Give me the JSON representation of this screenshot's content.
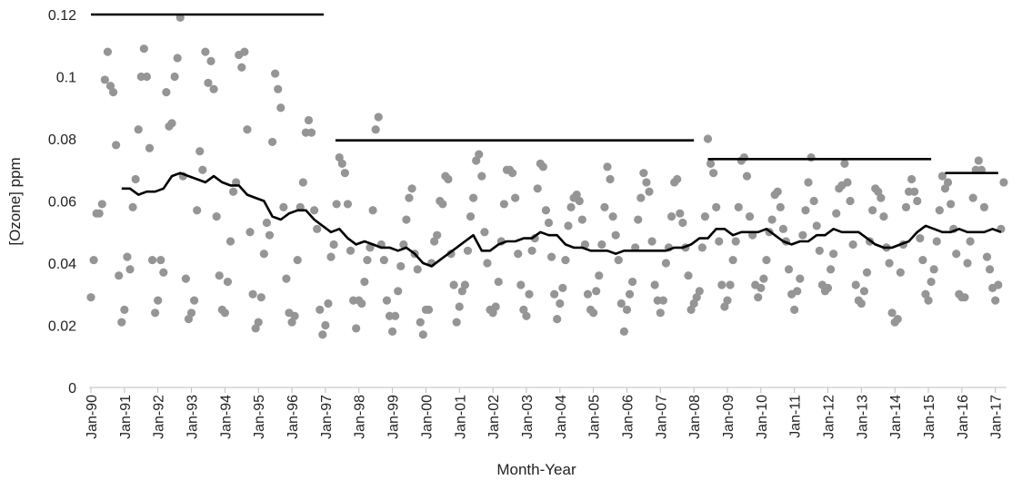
{
  "chart_data": {
    "type": "scatter",
    "xlabel": "Month-Year",
    "ylabel": "[Ozone] ppm",
    "xlim": [
      0,
      328
    ],
    "ylim": [
      0,
      0.12
    ],
    "yticks": [
      0,
      0.02,
      0.04,
      0.06,
      0.08,
      0.1,
      0.12
    ],
    "xticks": [
      {
        "value": 0,
        "label": "Jan-90"
      },
      {
        "value": 12,
        "label": "Jan-91"
      },
      {
        "value": 24,
        "label": "Jan-92"
      },
      {
        "value": 36,
        "label": "Jan-93"
      },
      {
        "value": 48,
        "label": "Jan-94"
      },
      {
        "value": 60,
        "label": "Jan-95"
      },
      {
        "value": 72,
        "label": "Jan-96"
      },
      {
        "value": 84,
        "label": "Jan-97"
      },
      {
        "value": 96,
        "label": "Jan-98"
      },
      {
        "value": 108,
        "label": "Jan-99"
      },
      {
        "value": 120,
        "label": "Jan-00"
      },
      {
        "value": 132,
        "label": "Jan-01"
      },
      {
        "value": 144,
        "label": "Jan-02"
      },
      {
        "value": 156,
        "label": "Jan-03"
      },
      {
        "value": 168,
        "label": "Jan-04"
      },
      {
        "value": 180,
        "label": "Jan-05"
      },
      {
        "value": 192,
        "label": "Jan-06"
      },
      {
        "value": 204,
        "label": "Jan-07"
      },
      {
        "value": 216,
        "label": "Jan-08"
      },
      {
        "value": 228,
        "label": "Jan-09"
      },
      {
        "value": 240,
        "label": "Jan-10"
      },
      {
        "value": 252,
        "label": "Jan-11"
      },
      {
        "value": 264,
        "label": "Jan-12"
      },
      {
        "value": 276,
        "label": "Jan-13"
      },
      {
        "value": 288,
        "label": "Jan-14"
      },
      {
        "value": 300,
        "label": "Jan-15"
      },
      {
        "value": 312,
        "label": "Jan-16"
      },
      {
        "value": 324,
        "label": "Jan-17"
      }
    ],
    "points": {
      "color": "#959595",
      "x": [
        0,
        1,
        2,
        3,
        4,
        5,
        6,
        7,
        8,
        9,
        10,
        11,
        12,
        13,
        14,
        15,
        16,
        17,
        18,
        19,
        20,
        21,
        22,
        23,
        24,
        25,
        26,
        27,
        28,
        29,
        30,
        31,
        32,
        33,
        34,
        35,
        36,
        37,
        38,
        39,
        40,
        41,
        42,
        43,
        44,
        45,
        46,
        47,
        48,
        49,
        50,
        51,
        52,
        53,
        54,
        55,
        56,
        57,
        58,
        59,
        60,
        61,
        62,
        63,
        64,
        65,
        66,
        67,
        68,
        69,
        70,
        71,
        72,
        73,
        74,
        75,
        76,
        77,
        78,
        79,
        80,
        81,
        82,
        83,
        84,
        85,
        86,
        87,
        88,
        89,
        90,
        91,
        92,
        93,
        94,
        95,
        96,
        97,
        98,
        99,
        100,
        101,
        102,
        103,
        104,
        105,
        106,
        107,
        108,
        109,
        110,
        111,
        112,
        113,
        114,
        115,
        116,
        117,
        118,
        119,
        120,
        121,
        122,
        123,
        124,
        125,
        126,
        127,
        128,
        129,
        130,
        131,
        132,
        133,
        134,
        135,
        136,
        137,
        138,
        139,
        140,
        141,
        142,
        143,
        144,
        145,
        146,
        147,
        148,
        149,
        150,
        151,
        152,
        153,
        154,
        155,
        156,
        157,
        158,
        159,
        160,
        161,
        162,
        163,
        164,
        165,
        166,
        167,
        168,
        169,
        170,
        171,
        172,
        173,
        174,
        175,
        176,
        177,
        178,
        179,
        180,
        181,
        182,
        183,
        184,
        185,
        186,
        187,
        188,
        189,
        190,
        191,
        192,
        193,
        194,
        195,
        196,
        197,
        198,
        199,
        200,
        201,
        202,
        203,
        204,
        205,
        206,
        207,
        208,
        209,
        210,
        211,
        212,
        213,
        214,
        215,
        216,
        217,
        218,
        219,
        220,
        221,
        222,
        223,
        224,
        225,
        226,
        227,
        228,
        229,
        230,
        231,
        232,
        233,
        234,
        235,
        236,
        237,
        238,
        239,
        240,
        241,
        242,
        243,
        244,
        245,
        246,
        247,
        248,
        249,
        250,
        251,
        252,
        253,
        254,
        255,
        256,
        257,
        258,
        259,
        260,
        261,
        262,
        263,
        264,
        265,
        266,
        267,
        268,
        269,
        270,
        271,
        272,
        273,
        274,
        275,
        276,
        277,
        278,
        279,
        280,
        281,
        282,
        283,
        284,
        285,
        286,
        287,
        288,
        289,
        290,
        291,
        292,
        293,
        294,
        295,
        296,
        297,
        298,
        299,
        300,
        301,
        302,
        303,
        304,
        305,
        306,
        307,
        308,
        309,
        310,
        311,
        312,
        313,
        314,
        315,
        316,
        317,
        318,
        319,
        320,
        321,
        322,
        323,
        324,
        325,
        326,
        327
      ],
      "values": [
        0.029,
        0.041,
        0.056,
        0.056,
        0.059,
        0.099,
        0.108,
        0.097,
        0.095,
        0.078,
        0.036,
        0.021,
        0.025,
        0.042,
        0.038,
        0.058,
        0.067,
        0.083,
        0.1,
        0.109,
        0.1,
        0.077,
        0.041,
        0.024,
        0.028,
        0.041,
        0.037,
        0.095,
        0.084,
        0.085,
        0.1,
        0.106,
        0.119,
        0.068,
        0.035,
        0.022,
        0.024,
        0.028,
        0.057,
        0.076,
        0.07,
        0.108,
        0.098,
        0.105,
        0.096,
        0.055,
        0.036,
        0.025,
        0.024,
        0.034,
        0.047,
        0.063,
        0.066,
        0.107,
        0.103,
        0.108,
        0.083,
        0.05,
        0.03,
        0.019,
        0.021,
        0.029,
        0.043,
        0.053,
        0.049,
        0.079,
        0.101,
        0.096,
        0.09,
        0.058,
        0.035,
        0.024,
        0.021,
        0.023,
        0.041,
        0.058,
        0.066,
        0.082,
        0.086,
        0.082,
        0.057,
        0.051,
        0.025,
        0.017,
        0.02,
        0.027,
        0.042,
        0.046,
        0.059,
        0.074,
        0.072,
        0.069,
        0.059,
        0.044,
        0.028,
        0.019,
        0.028,
        0.027,
        0.034,
        0.041,
        0.045,
        0.057,
        0.083,
        0.087,
        0.046,
        0.041,
        0.028,
        0.023,
        0.018,
        0.023,
        0.031,
        0.039,
        0.046,
        0.054,
        0.061,
        0.064,
        0.043,
        0.038,
        0.021,
        0.017,
        0.025,
        0.025,
        0.04,
        0.047,
        0.049,
        0.06,
        0.059,
        0.068,
        0.067,
        0.043,
        0.033,
        0.021,
        0.026,
        0.031,
        0.033,
        0.044,
        0.055,
        0.061,
        0.073,
        0.075,
        0.068,
        0.05,
        0.04,
        0.025,
        0.024,
        0.026,
        0.034,
        0.047,
        0.059,
        0.07,
        0.07,
        0.069,
        0.061,
        0.043,
        0.033,
        0.025,
        0.023,
        0.03,
        0.044,
        0.048,
        0.064,
        0.072,
        0.071,
        0.057,
        0.053,
        0.042,
        0.03,
        0.022,
        0.027,
        0.032,
        0.041,
        0.052,
        0.058,
        0.061,
        0.062,
        0.06,
        0.054,
        0.046,
        0.03,
        0.025,
        0.024,
        0.031,
        0.036,
        0.046,
        0.058,
        0.071,
        0.067,
        0.055,
        0.049,
        0.041,
        0.027,
        0.018,
        0.025,
        0.03,
        0.034,
        0.045,
        0.054,
        0.061,
        0.069,
        0.066,
        0.063,
        0.047,
        0.033,
        0.028,
        0.024,
        0.028,
        0.04,
        0.045,
        0.055,
        0.066,
        0.067,
        0.056,
        0.053,
        0.045,
        0.036,
        0.025,
        0.027,
        0.029,
        0.031,
        0.045,
        0.055,
        0.08,
        0.072,
        0.069,
        0.058,
        0.047,
        0.033,
        0.026,
        0.028,
        0.033,
        0.041,
        0.047,
        0.058,
        0.073,
        0.074,
        0.068,
        0.055,
        0.049,
        0.033,
        0.029,
        0.032,
        0.035,
        0.041,
        0.05,
        0.054,
        0.062,
        0.063,
        0.058,
        0.051,
        0.047,
        0.038,
        0.03,
        0.025,
        0.031,
        0.035,
        0.049,
        0.057,
        0.066,
        0.074,
        0.06,
        0.052,
        0.044,
        0.033,
        0.031,
        0.032,
        0.038,
        0.043,
        0.056,
        0.064,
        0.065,
        0.072,
        0.066,
        0.06,
        0.046,
        0.033,
        0.028,
        0.027,
        0.031,
        0.037,
        0.047,
        0.057,
        0.064,
        0.063,
        0.061,
        0.055,
        0.045,
        0.04,
        0.024,
        0.021,
        0.022,
        0.037,
        0.046,
        0.058,
        0.063,
        0.067,
        0.063,
        0.06,
        0.048,
        0.041,
        0.03,
        0.028,
        0.034,
        0.038,
        0.047,
        0.057,
        0.068,
        0.064,
        0.066,
        0.059,
        0.051,
        0.043,
        0.03,
        0.029,
        0.029,
        0.04,
        0.047,
        0.061,
        0.07,
        0.073,
        0.07,
        0.058,
        0.042,
        0.038,
        0.032,
        0.028,
        0.033,
        0.051,
        0.066
      ]
    },
    "moving_average": {
      "color": "#000000",
      "x": [
        11,
        14,
        17,
        20,
        23,
        26,
        29,
        32,
        35,
        38,
        41,
        44,
        47,
        50,
        53,
        56,
        59,
        62,
        65,
        68,
        71,
        74,
        77,
        80,
        83,
        86,
        89,
        92,
        95,
        98,
        101,
        104,
        107,
        110,
        113,
        116,
        119,
        122,
        125,
        128,
        131,
        134,
        137,
        140,
        143,
        146,
        149,
        152,
        155,
        158,
        161,
        164,
        167,
        170,
        173,
        176,
        179,
        182,
        185,
        188,
        191,
        194,
        197,
        200,
        203,
        206,
        209,
        212,
        215,
        218,
        221,
        224,
        227,
        230,
        233,
        236,
        239,
        242,
        245,
        248,
        251,
        254,
        257,
        260,
        263,
        266,
        269,
        272,
        275,
        278,
        281,
        284,
        287,
        290,
        293,
        296,
        299,
        302,
        305,
        308,
        311,
        314,
        317,
        320,
        323,
        326
      ],
      "values": [
        0.064,
        0.064,
        0.062,
        0.063,
        0.063,
        0.064,
        0.068,
        0.069,
        0.068,
        0.067,
        0.066,
        0.068,
        0.066,
        0.065,
        0.065,
        0.062,
        0.061,
        0.06,
        0.055,
        0.054,
        0.056,
        0.057,
        0.057,
        0.054,
        0.052,
        0.05,
        0.051,
        0.048,
        0.046,
        0.047,
        0.046,
        0.045,
        0.045,
        0.044,
        0.045,
        0.043,
        0.04,
        0.039,
        0.041,
        0.043,
        0.045,
        0.047,
        0.049,
        0.044,
        0.044,
        0.046,
        0.047,
        0.047,
        0.048,
        0.048,
        0.05,
        0.049,
        0.049,
        0.046,
        0.045,
        0.045,
        0.044,
        0.044,
        0.044,
        0.043,
        0.044,
        0.044,
        0.044,
        0.044,
        0.044,
        0.044,
        0.045,
        0.045,
        0.046,
        0.048,
        0.048,
        0.051,
        0.051,
        0.049,
        0.05,
        0.05,
        0.05,
        0.051,
        0.049,
        0.047,
        0.046,
        0.047,
        0.047,
        0.049,
        0.049,
        0.051,
        0.05,
        0.05,
        0.05,
        0.048,
        0.046,
        0.045,
        0.045,
        0.046,
        0.047,
        0.05,
        0.052,
        0.051,
        0.05,
        0.05,
        0.051,
        0.05,
        0.05,
        0.05,
        0.051,
        0.05
      ]
    },
    "segments": {
      "color": "#000000",
      "items": [
        {
          "x": [
            0,
            83.4
          ],
          "y": 0.12
        },
        {
          "x": [
            87.6,
            216
          ],
          "y": 0.0795
        },
        {
          "x": [
            221,
            301
          ],
          "y": 0.0735
        },
        {
          "x": [
            306,
            325
          ],
          "y": 0.069
        }
      ]
    }
  }
}
